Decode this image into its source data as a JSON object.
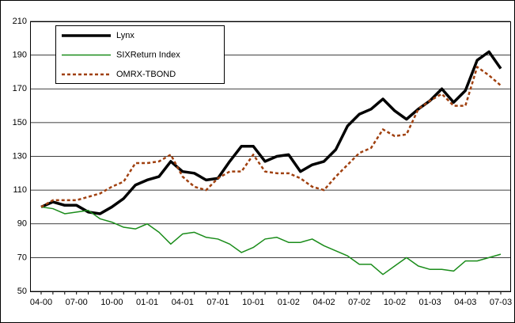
{
  "chart_data": {
    "type": "line",
    "categories": [
      "04-00",
      null,
      null,
      "07-00",
      null,
      null,
      "10-00",
      null,
      null,
      "01-01",
      null,
      null,
      "04-01",
      null,
      null,
      "07-01",
      null,
      null,
      "10-01",
      null,
      null,
      "01-02",
      null,
      null,
      "04-02",
      null,
      null,
      "07-02",
      null,
      null,
      "10-02",
      null,
      null,
      "01-03",
      null,
      null,
      "04-03",
      null,
      null,
      "07-03"
    ],
    "series": [
      {
        "name": "Lynx",
        "color": "#000000",
        "style": "solid",
        "width": 3.5,
        "values": [
          100,
          103,
          101,
          101,
          97,
          96,
          100,
          105,
          113,
          116,
          118,
          127,
          121,
          120,
          116,
          117,
          127,
          136,
          136,
          127,
          130,
          131,
          121,
          125,
          127,
          134,
          148,
          155,
          158,
          164,
          157,
          152,
          158,
          163,
          170,
          162,
          169,
          187,
          192,
          182
        ]
      },
      {
        "name": "SIXReturn Index",
        "color": "#1a8c1a",
        "style": "solid",
        "width": 1.5,
        "values": [
          100,
          99,
          96,
          97,
          98,
          93,
          91,
          88,
          87,
          90,
          85,
          78,
          84,
          85,
          82,
          81,
          78,
          73,
          76,
          81,
          82,
          79,
          79,
          81,
          77,
          74,
          71,
          66,
          66,
          60,
          65,
          70,
          65,
          63,
          63,
          62,
          68,
          68,
          70,
          72
        ]
      },
      {
        "name": "OMRX-TBOND",
        "color": "#a0400f",
        "style": "dotted",
        "width": 2.5,
        "values": [
          100,
          104,
          104,
          104,
          106,
          108,
          112,
          115,
          126,
          126,
          127,
          131,
          118,
          112,
          110,
          117,
          121,
          121,
          131,
          121,
          120,
          120,
          117,
          112,
          110,
          118,
          125,
          132,
          135,
          146,
          142,
          143,
          158,
          163,
          167,
          160,
          160,
          183,
          178,
          172
        ]
      }
    ],
    "ylim": [
      50,
      210
    ],
    "yticks": [
      50,
      70,
      90,
      110,
      130,
      150,
      170,
      190,
      210
    ],
    "grid": true,
    "legend": "top-left"
  }
}
